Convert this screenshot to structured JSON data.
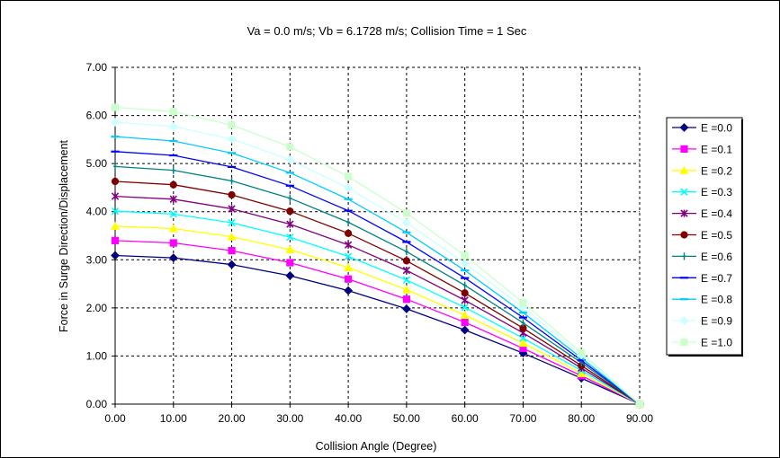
{
  "chart_data": {
    "type": "line",
    "title": "Va = 0.0 m/s; Vb = 6.1728 m/s; Collision Time = 1 Sec",
    "xlabel": "Collision Angle (Degree)",
    "ylabel": "Force in Surge Direction/Displacement",
    "xlim": [
      0,
      90
    ],
    "ylim": [
      0,
      7
    ],
    "x_ticks": [
      "0.00",
      "10.00",
      "20.00",
      "30.00",
      "40.00",
      "50.00",
      "60.00",
      "70.00",
      "80.00",
      "90.00"
    ],
    "y_ticks": [
      "0.00",
      "1.00",
      "2.00",
      "3.00",
      "4.00",
      "5.00",
      "6.00",
      "7.00"
    ],
    "grid": true,
    "legend_position": "right",
    "x": [
      0,
      10,
      20,
      30,
      40,
      50,
      60,
      70,
      80,
      90
    ],
    "series": [
      {
        "name": "E =0.0",
        "color": "#000080",
        "marker": "diamond",
        "values": [
          3.09,
          3.04,
          2.9,
          2.67,
          2.36,
          1.98,
          1.54,
          1.06,
          0.54,
          0.0
        ]
      },
      {
        "name": "E =0.1",
        "color": "#FF00FF",
        "marker": "square",
        "values": [
          3.4,
          3.35,
          3.19,
          2.94,
          2.6,
          2.18,
          1.7,
          1.16,
          0.59,
          0.0
        ]
      },
      {
        "name": "E =0.2",
        "color": "#FFFF00",
        "marker": "triangle",
        "values": [
          3.7,
          3.65,
          3.48,
          3.21,
          2.84,
          2.38,
          1.85,
          1.27,
          0.64,
          0.0
        ]
      },
      {
        "name": "E =0.3",
        "color": "#00FFFF",
        "marker": "x",
        "values": [
          4.01,
          3.95,
          3.77,
          3.47,
          3.07,
          2.58,
          2.01,
          1.37,
          0.7,
          0.0
        ]
      },
      {
        "name": "E =0.4",
        "color": "#800080",
        "marker": "star",
        "values": [
          4.32,
          4.26,
          4.06,
          3.74,
          3.31,
          2.78,
          2.16,
          1.48,
          0.75,
          0.0
        ]
      },
      {
        "name": "E =0.5",
        "color": "#800000",
        "marker": "circle",
        "values": [
          4.63,
          4.56,
          4.35,
          4.01,
          3.55,
          2.98,
          2.31,
          1.58,
          0.8,
          0.0
        ]
      },
      {
        "name": "E =0.6",
        "color": "#008080",
        "marker": "plus",
        "values": [
          4.94,
          4.86,
          4.64,
          4.28,
          3.78,
          3.17,
          2.47,
          1.69,
          0.86,
          0.0
        ]
      },
      {
        "name": "E =0.7",
        "color": "#0000FF",
        "marker": "dash",
        "values": [
          5.25,
          5.17,
          4.93,
          4.54,
          4.02,
          3.37,
          2.62,
          1.8,
          0.91,
          0.0
        ]
      },
      {
        "name": "E =0.8",
        "color": "#00CCFF",
        "marker": "dash",
        "values": [
          5.56,
          5.47,
          5.22,
          4.81,
          4.26,
          3.57,
          2.78,
          1.9,
          0.96,
          0.0
        ]
      },
      {
        "name": "E =0.9",
        "color": "#CCFFFF",
        "marker": "diamond",
        "values": [
          5.86,
          5.77,
          5.51,
          5.08,
          4.49,
          3.77,
          2.93,
          2.01,
          1.02,
          0.0
        ]
      },
      {
        "name": "E =1.0",
        "color": "#CCFFCC",
        "marker": "square",
        "values": [
          6.17,
          6.08,
          5.8,
          5.35,
          4.73,
          3.97,
          3.09,
          2.11,
          1.07,
          0.0
        ]
      }
    ]
  }
}
